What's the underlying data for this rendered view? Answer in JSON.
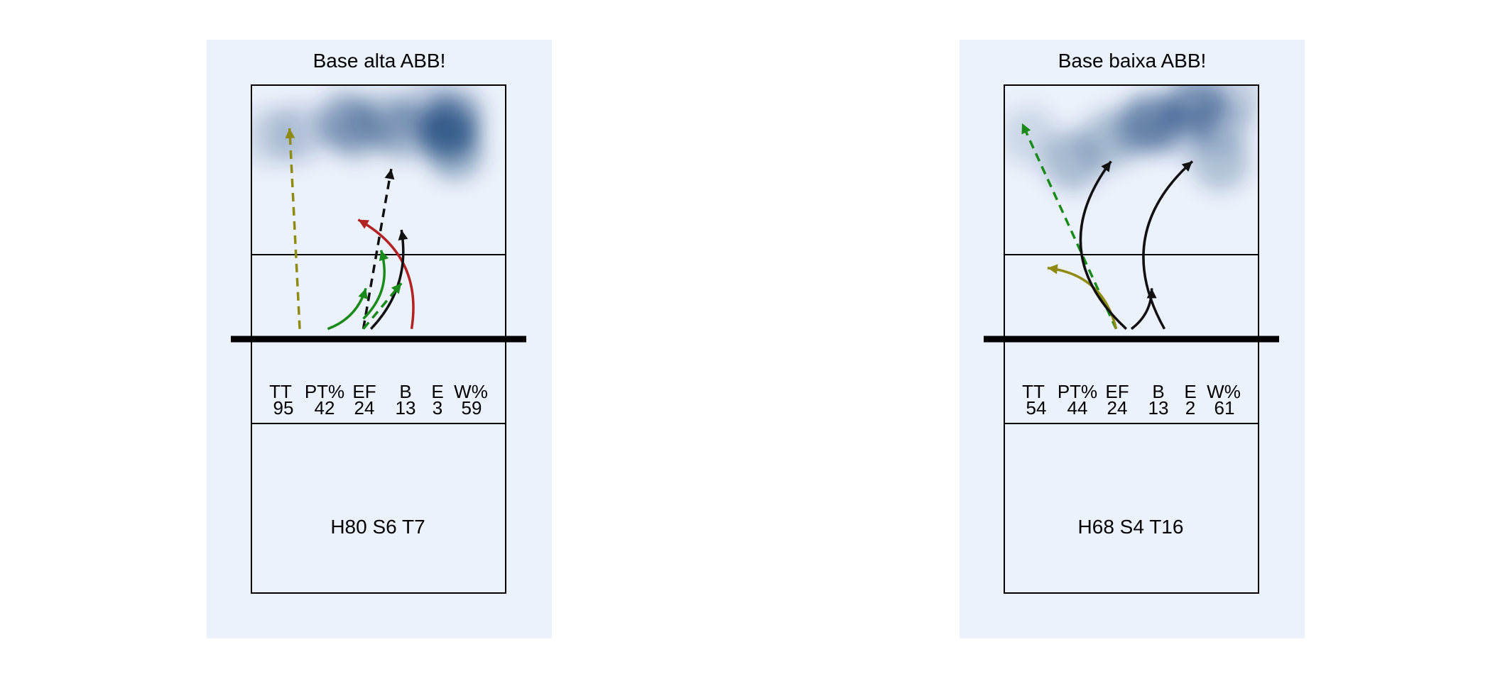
{
  "panels": [
    {
      "title": "Base alta ABB!",
      "stats": {
        "headers": [
          "TT",
          "PT%",
          "EF",
          "B",
          "E",
          "W%"
        ],
        "values": [
          "95",
          "42",
          "24",
          "13",
          "3",
          "59"
        ]
      },
      "footer": "H80 S6 T7",
      "heat": [
        [
          0.37,
          0.86,
          0.55
        ],
        [
          0.41,
          0.82,
          0.45
        ],
        [
          0.52,
          0.86,
          0.4
        ],
        [
          0.6,
          0.82,
          0.5
        ],
        [
          0.69,
          0.9,
          0.35
        ],
        [
          0.77,
          0.82,
          0.95
        ],
        [
          0.8,
          0.88,
          0.55
        ],
        [
          0.8,
          0.74,
          0.6
        ],
        [
          0.18,
          0.81,
          0.35
        ],
        [
          0.07,
          0.8,
          0.25
        ]
      ],
      "arrows": [
        {
          "color": "olive",
          "style": "dashed",
          "from": [
            0.19,
            0.04
          ],
          "to": [
            0.15,
            0.83
          ],
          "bend": 0
        },
        {
          "color": "black",
          "style": "dashed",
          "from": [
            0.44,
            0.04
          ],
          "to": [
            0.55,
            0.67
          ],
          "bend": 0
        },
        {
          "color": "red",
          "style": "solid",
          "from": [
            0.63,
            0.04
          ],
          "to": [
            0.42,
            0.47
          ],
          "bend": 0.35
        },
        {
          "color": "black",
          "style": "solid",
          "from": [
            0.47,
            0.04
          ],
          "to": [
            0.59,
            0.43
          ],
          "bend": 0.25
        },
        {
          "color": "green",
          "style": "solid",
          "from": [
            0.44,
            0.08
          ],
          "to": [
            0.51,
            0.35
          ],
          "bend": 0.3
        },
        {
          "color": "green",
          "style": "dashed",
          "from": [
            0.44,
            0.04
          ],
          "to": [
            0.59,
            0.22
          ],
          "bend": 0
        },
        {
          "color": "green",
          "style": "solid",
          "from": [
            0.3,
            0.04
          ],
          "to": [
            0.45,
            0.2
          ],
          "bend": 0.25
        }
      ]
    },
    {
      "title": "Base baixa ABB!",
      "stats": {
        "headers": [
          "TT",
          "PT%",
          "EF",
          "B",
          "E",
          "W%"
        ],
        "values": [
          "54",
          "44",
          "24",
          "13",
          "2",
          "61"
        ]
      },
      "footer": "H68 S4 T16",
      "heat": [
        [
          0.58,
          0.85,
          0.85
        ],
        [
          0.75,
          0.92,
          0.8
        ],
        [
          0.85,
          0.85,
          0.35
        ],
        [
          0.85,
          0.7,
          0.45
        ],
        [
          0.27,
          0.7,
          0.5
        ],
        [
          0.4,
          0.78,
          0.4
        ],
        [
          0.5,
          0.82,
          0.3
        ],
        [
          0.1,
          0.8,
          0.25
        ],
        [
          0.7,
          0.83,
          0.35
        ],
        [
          0.9,
          0.95,
          0.3
        ]
      ],
      "arrows": [
        {
          "color": "green",
          "style": "dashed",
          "from": [
            0.44,
            0.04
          ],
          "to": [
            0.07,
            0.85
          ],
          "bend": 0
        },
        {
          "color": "olive",
          "style": "solid",
          "from": [
            0.44,
            0.04
          ],
          "to": [
            0.17,
            0.28
          ],
          "bend": 0.35
        },
        {
          "color": "black",
          "style": "solid",
          "from": [
            0.48,
            0.04
          ],
          "to": [
            0.42,
            0.7
          ],
          "bend": -0.45
        },
        {
          "color": "black",
          "style": "solid",
          "from": [
            0.5,
            0.04
          ],
          "to": [
            0.58,
            0.2
          ],
          "bend": 0.25
        },
        {
          "color": "black",
          "style": "solid",
          "from": [
            0.63,
            0.04
          ],
          "to": [
            0.74,
            0.7
          ],
          "bend": -0.4
        }
      ]
    }
  ],
  "colors": {
    "panel_bg": "#ecf2fb",
    "heat": "#08306b",
    "net": "#000000",
    "court_line": "#000000",
    "black": "#111111",
    "green": "#1a8a1a",
    "red": "#b22222",
    "olive": "#8f8a12"
  }
}
